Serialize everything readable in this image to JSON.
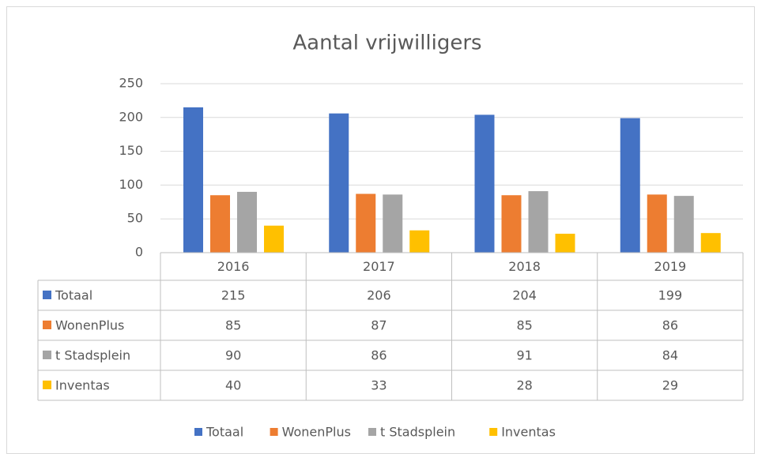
{
  "chart_data": {
    "type": "bar",
    "title": "Aantal vrijwilligers",
    "categories": [
      "2016",
      "2017",
      "2018",
      "2019"
    ],
    "series": [
      {
        "name": "Totaal",
        "color": "#4472c4",
        "values": [
          215,
          206,
          204,
          199
        ]
      },
      {
        "name": "WonenPlus",
        "color": "#ed7d31",
        "values": [
          85,
          87,
          85,
          86
        ]
      },
      {
        "name": "t Stadsplein",
        "color": "#a5a5a5",
        "values": [
          90,
          86,
          91,
          84
        ]
      },
      {
        "name": "Inventas",
        "color": "#ffc000",
        "values": [
          40,
          33,
          28,
          29
        ]
      }
    ],
    "ylim": [
      0,
      250
    ],
    "yticks": [
      0,
      50,
      100,
      150,
      200,
      250
    ],
    "grid": true,
    "legend": "bottom"
  }
}
